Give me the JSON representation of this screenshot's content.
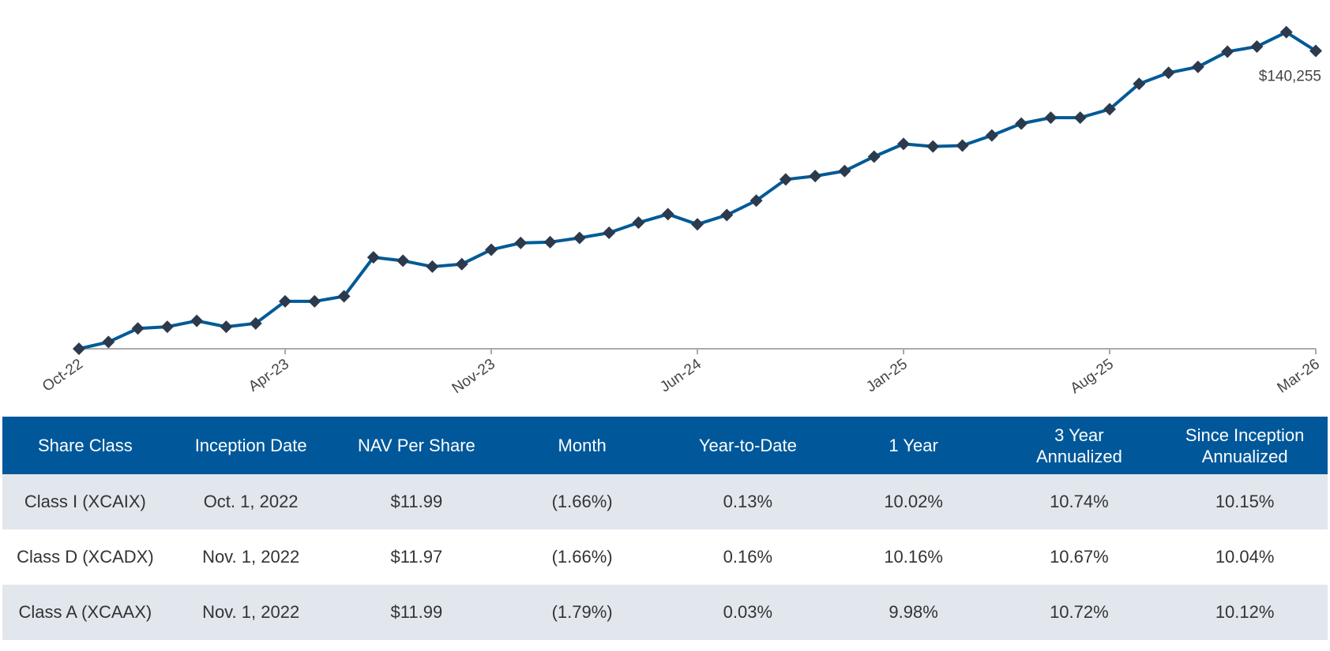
{
  "chart_data": {
    "type": "line",
    "categories": [
      "Oct-22",
      null,
      null,
      null,
      null,
      null,
      null,
      "Apr-23",
      null,
      null,
      null,
      null,
      null,
      null,
      "Nov-23",
      null,
      null,
      null,
      null,
      null,
      null,
      "Jun-24",
      null,
      null,
      null,
      null,
      null,
      null,
      "Jan-25",
      null,
      null,
      null,
      null,
      null,
      null,
      "Aug-25",
      null,
      null,
      null,
      null,
      null,
      null,
      "Mar-26"
    ],
    "values": [
      100000,
      100915,
      102745,
      102974,
      103775,
      102974,
      103432,
      106406,
      106406,
      107093,
      112355,
      111897,
      111097,
      111440,
      113385,
      114300,
      114414,
      114986,
      115672,
      117045,
      118189,
      116816,
      118075,
      120020,
      122880,
      123337,
      124023,
      125968,
      127684,
      127341,
      127456,
      128828,
      130430,
      131230,
      131230,
      132374,
      135806,
      137293,
      138094,
      140153,
      140840,
      142785,
      140255
    ],
    "value_labels": [
      null,
      null,
      null,
      null,
      null,
      null,
      null,
      null,
      null,
      null,
      null,
      null,
      null,
      null,
      null,
      null,
      null,
      null,
      null,
      null,
      null,
      null,
      null,
      null,
      null,
      null,
      null,
      null,
      null,
      null,
      null,
      null,
      null,
      null,
      null,
      null,
      null,
      null,
      null,
      null,
      null,
      null,
      "$140,255"
    ],
    "color": "#005a96",
    "marker_color": "#2b3a4c",
    "ylim": [
      100000,
      145000
    ]
  },
  "table": {
    "header": [
      "Share Class",
      "Inception Date",
      "NAV Per Share",
      "Month",
      "Year-to-Date",
      "1 Year",
      "3 Year\nAnnualized",
      "Since Inception\nAnnualized"
    ],
    "rows": [
      [
        "Class I (XCAIX)",
        "Oct. 1, 2022",
        "$11.99",
        "(1.66%)",
        "0.13%",
        "10.02%",
        "10.74%",
        "10.15%"
      ],
      [
        "Class D (XCADX)",
        "Nov. 1, 2022",
        "$11.97",
        "(1.66%)",
        "0.16%",
        "10.16%",
        "10.67%",
        "10.04%"
      ],
      [
        "Class A (XCAAX)",
        "Nov. 1, 2022",
        "$11.99",
        "(1.79%)",
        "0.03%",
        "9.98%",
        "10.72%",
        "10.12%"
      ]
    ]
  }
}
